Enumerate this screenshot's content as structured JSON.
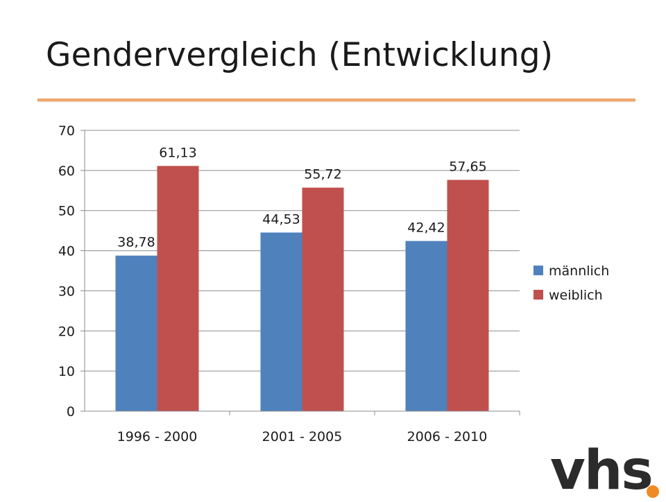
{
  "slide": {
    "title": "Gendervergleich (Entwicklung)",
    "logo_text": "vhs",
    "colors": {
      "accent_rule": "#f0a870",
      "logo_dot": "#f08a24"
    }
  },
  "chart_data": {
    "type": "bar",
    "title": "",
    "xlabel": "",
    "ylabel": "",
    "categories": [
      "1996 - 2000",
      "2001 - 2005",
      "2006 - 2010"
    ],
    "series": [
      {
        "name": "männlich",
        "values": [
          38.78,
          44.53,
          42.42
        ],
        "labels": [
          "38,78",
          "44,53",
          "42,42"
        ],
        "color": "#4f81bd"
      },
      {
        "name": "weiblich",
        "values": [
          61.13,
          55.72,
          57.65
        ],
        "labels": [
          "61,13",
          "55,72",
          "57,65"
        ],
        "color": "#c0504d"
      }
    ],
    "ylim": [
      0,
      70
    ],
    "yticks": [
      0,
      10,
      20,
      30,
      40,
      50,
      60,
      70
    ],
    "grid": true,
    "legend": "right"
  }
}
